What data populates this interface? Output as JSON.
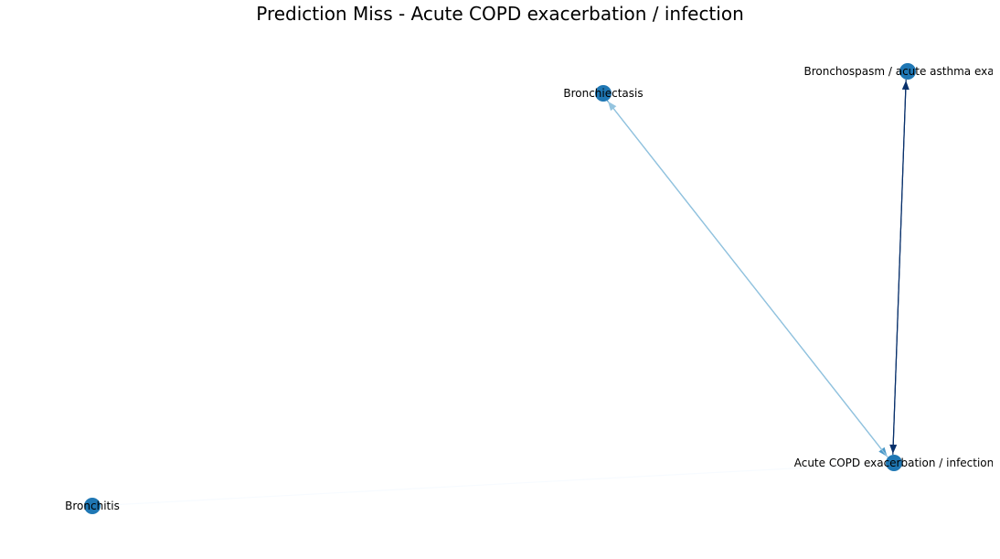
{
  "title": "Prediction Miss - Acute COPD exacerbation / infection",
  "node_color": "#1f77b4",
  "nodes": [
    {
      "id": "bronchiectasis",
      "label": "Bronchiectasis"
    },
    {
      "id": "bronchospasm",
      "label": "Bronchospasm / acute asthma exacer"
    },
    {
      "id": "copd",
      "label": "Acute COPD exacerbation / infection"
    },
    {
      "id": "bronchitis",
      "label": "Bronchitis"
    }
  ],
  "edges": [
    {
      "from": "bronchitis",
      "to": "copd",
      "color": "#f7fbff",
      "arrow": false
    },
    {
      "from": "bronchiectasis",
      "to": "copd",
      "color": "#4a98c9",
      "arrow": true
    },
    {
      "from": "copd",
      "to": "bronchiectasis",
      "color": "#94c4df",
      "arrow": true
    },
    {
      "from": "bronchospasm",
      "to": "copd",
      "color": "#08306b",
      "arrow": true
    },
    {
      "from": "copd",
      "to": "bronchospasm",
      "color": "#08306b",
      "arrow": true
    }
  ]
}
